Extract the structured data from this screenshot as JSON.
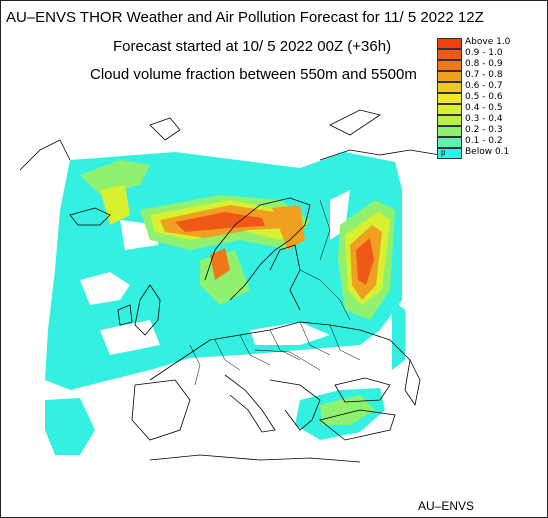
{
  "header": {
    "title": "AU–ENVS THOR Weather and Air Pollution Forecast for 11/ 5 2022  12Z",
    "forecast_start": "Forecast started at 10/ 5 2022  00Z (+36h)",
    "variable": "Cloud volume fraction between 550m and 5500m"
  },
  "legend": {
    "items": [
      {
        "label": "Above   1.0",
        "color": "#f04010"
      },
      {
        "label": "0.9  -  1.0",
        "color": "#f05818"
      },
      {
        "label": "0.8  -  0.9",
        "color": "#f07818"
      },
      {
        "label": "0.7  -  0.8",
        "color": "#f0a020"
      },
      {
        "label": "0.6  -  0.7",
        "color": "#f0c828"
      },
      {
        "label": "0.5  -  0.6",
        "color": "#f0e828"
      },
      {
        "label": "0.4  -  0.5",
        "color": "#d8f030"
      },
      {
        "label": "0.3  -  0.4",
        "color": "#b8f048"
      },
      {
        "label": "0.2  -  0.3",
        "color": "#90f070"
      },
      {
        "label": "0.1  -  0.2",
        "color": "#60f0b0"
      },
      {
        "label": "Below   0.1",
        "color": "#30f0e8",
        "marker": "p"
      }
    ]
  },
  "credit": "AU–ENVS"
}
